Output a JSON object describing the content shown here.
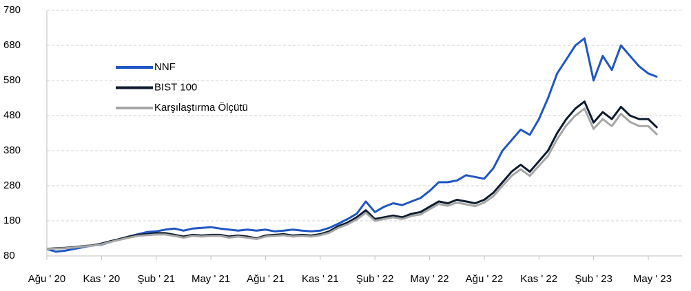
{
  "chart_data": {
    "type": "line",
    "categories": [
      "Ağu ' 20",
      null,
      null,
      null,
      null,
      null,
      "Kas ' 20",
      null,
      null,
      null,
      null,
      null,
      "Şub ' 21",
      null,
      null,
      null,
      null,
      null,
      "May ' 21",
      null,
      null,
      null,
      null,
      null,
      "Ağu ' 21",
      null,
      null,
      null,
      null,
      null,
      "Kas ' 21",
      null,
      null,
      null,
      null,
      null,
      "Şub ' 22",
      null,
      null,
      null,
      null,
      null,
      "May ' 22",
      null,
      null,
      null,
      null,
      null,
      "Ağu ' 22",
      null,
      null,
      null,
      null,
      null,
      "Kas ' 22",
      null,
      null,
      null,
      null,
      null,
      "Şub ' 23",
      null,
      null,
      null,
      null,
      null,
      "May ' 23",
      null
    ],
    "series": [
      {
        "name": "NNF",
        "color": "#1f56c3",
        "values": [
          100,
          92,
          95,
          100,
          105,
          110,
          112,
          120,
          128,
          135,
          142,
          148,
          150,
          155,
          158,
          152,
          158,
          160,
          162,
          158,
          155,
          152,
          155,
          152,
          155,
          150,
          152,
          155,
          152,
          150,
          152,
          160,
          172,
          185,
          200,
          235,
          205,
          220,
          230,
          225,
          235,
          245,
          265,
          290,
          290,
          295,
          310,
          305,
          300,
          330,
          380,
          410,
          440,
          425,
          470,
          530,
          600,
          640,
          680,
          700,
          580,
          650,
          610,
          680,
          650,
          620,
          600,
          590
        ]
      },
      {
        "name": "BIST 100",
        "color": "#0d1b2e",
        "values": [
          100,
          102,
          103,
          105,
          108,
          110,
          115,
          122,
          128,
          135,
          140,
          142,
          145,
          145,
          140,
          135,
          140,
          138,
          140,
          140,
          135,
          138,
          135,
          130,
          138,
          140,
          142,
          138,
          140,
          138,
          142,
          150,
          165,
          175,
          190,
          210,
          185,
          190,
          195,
          190,
          200,
          205,
          220,
          235,
          230,
          240,
          235,
          230,
          240,
          260,
          290,
          320,
          340,
          320,
          350,
          380,
          430,
          470,
          500,
          520,
          460,
          490,
          470,
          505,
          480,
          470,
          470,
          445
        ]
      },
      {
        "name": "Karşılaştırma Ölçütü",
        "color": "#a6a6a6",
        "values": [
          100,
          101,
          102,
          104,
          107,
          109,
          113,
          120,
          126,
          132,
          137,
          139,
          141,
          141,
          137,
          132,
          137,
          135,
          137,
          137,
          132,
          135,
          132,
          128,
          135,
          137,
          139,
          135,
          137,
          135,
          139,
          146,
          160,
          170,
          184,
          203,
          180,
          185,
          190,
          185,
          194,
          198,
          213,
          228,
          223,
          232,
          227,
          222,
          232,
          250,
          280,
          308,
          327,
          308,
          337,
          365,
          413,
          452,
          480,
          500,
          442,
          470,
          450,
          485,
          462,
          450,
          450,
          425
        ]
      }
    ],
    "ylim": [
      80,
      780
    ],
    "yticks": [
      80,
      180,
      280,
      380,
      480,
      580,
      680,
      780
    ],
    "grid": true,
    "legend": "upper left"
  }
}
